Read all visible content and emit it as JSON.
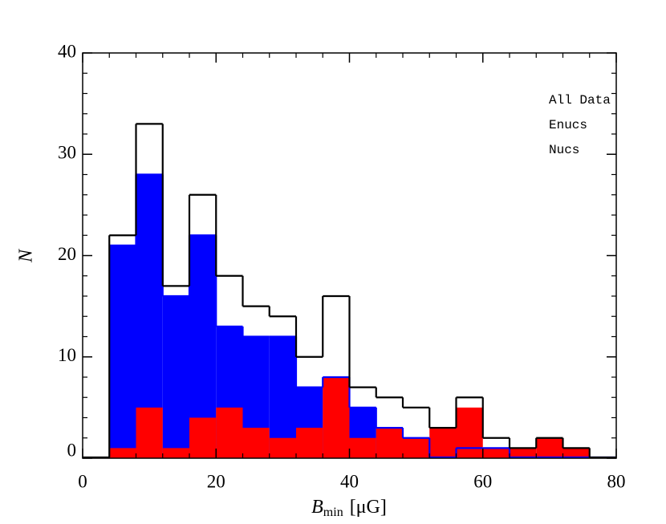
{
  "chart_data": {
    "type": "histogram",
    "xlabel": "B",
    "xlabel_sub": "min",
    "xlabel_unit": "[μG]",
    "ylabel": "N",
    "bins": [
      0,
      4,
      8,
      12,
      16,
      20,
      24,
      28,
      32,
      36,
      40,
      44,
      48,
      52,
      56,
      60,
      64,
      68,
      72,
      76,
      80
    ],
    "series": [
      {
        "name": "All Data",
        "color": "#000000",
        "style": "step",
        "values": [
          0,
          22,
          33,
          17,
          26,
          18,
          15,
          14,
          10,
          16,
          7,
          6,
          5,
          3,
          6,
          2,
          1,
          2,
          1,
          0
        ]
      },
      {
        "name": "Enucs",
        "color": "#0000ff",
        "style": "filled",
        "values": [
          0,
          21,
          28,
          16,
          22,
          13,
          12,
          12,
          7,
          8,
          5,
          3,
          2,
          0,
          1,
          1,
          0,
          0,
          0,
          0
        ]
      },
      {
        "name": "Nucs",
        "color": "#ff0000",
        "style": "filled",
        "values": [
          0,
          1,
          5,
          1,
          4,
          5,
          3,
          2,
          3,
          8,
          2,
          3,
          2,
          3,
          5,
          1,
          1,
          2,
          1,
          0
        ]
      }
    ],
    "xlim": [
      0,
      80
    ],
    "ylim": [
      0,
      40
    ],
    "xticks": [
      0,
      20,
      40,
      60,
      80
    ],
    "yticks": [
      0,
      10,
      20,
      30,
      40
    ],
    "xminorticks": [
      4,
      8,
      12,
      16,
      24,
      28,
      32,
      36,
      44,
      48,
      52,
      56,
      64,
      68,
      72,
      76
    ],
    "yminorticks": [
      2,
      4,
      6,
      8,
      12,
      14,
      16,
      18,
      22,
      24,
      26,
      28,
      32,
      34,
      36,
      38
    ],
    "legend": "upper right"
  }
}
